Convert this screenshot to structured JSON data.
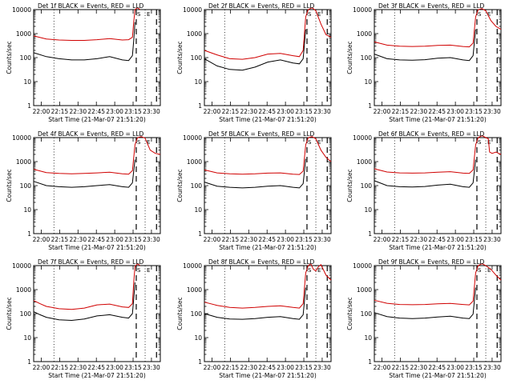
{
  "chart_data": [
    {
      "type": "line",
      "title": "Det 1f BLACK = Events, RED = LLD",
      "xlabel": "Start Time (21-Mar-07 21:51:20)",
      "ylabel": "Counts/sec",
      "ylim": [
        1,
        10000
      ],
      "yscale": "log",
      "xticks": [
        "22:00",
        "22:15",
        "22:30",
        "22:45",
        "23:00",
        "23:15",
        "23:30"
      ],
      "yticks": [
        "1",
        "10",
        "100",
        "1000",
        "10000"
      ],
      "markers": [
        "S",
        "E"
      ],
      "series": [
        {
          "color": "#d00000",
          "x": [
            0,
            10,
            20,
            30,
            40,
            50,
            60,
            70,
            75,
            78,
            79,
            80,
            82,
            84
          ],
          "y": [
            800,
            600,
            540,
            520,
            520,
            560,
            620,
            540,
            560,
            700,
            3000,
            10000,
            12000,
            10000
          ]
        },
        {
          "color": "#000000",
          "x": [
            0,
            10,
            20,
            30,
            40,
            50,
            60,
            70,
            75,
            78,
            79,
            80
          ],
          "y": [
            160,
            110,
            90,
            80,
            80,
            90,
            110,
            80,
            75,
            120,
            500,
            3000
          ]
        }
      ]
    },
    {
      "type": "line",
      "title": "Det 2f BLACK = Events, RED = LLD",
      "xlabel": "Start Time (21-Mar-07 21:51:20)",
      "ylabel": "Counts/sec",
      "ylim": [
        1,
        10000
      ],
      "yscale": "log",
      "xticks": [
        "22:00",
        "22:15",
        "22:30",
        "22:45",
        "23:00",
        "23:15",
        "23:30"
      ],
      "yticks": [
        "1",
        "10",
        "100",
        "1000",
        "10000"
      ],
      "markers": [
        "S",
        "E"
      ],
      "series": [
        {
          "color": "#d00000",
          "x": [
            0,
            10,
            20,
            30,
            40,
            50,
            60,
            70,
            75,
            78,
            80,
            82,
            85,
            88,
            92,
            96,
            100
          ],
          "y": [
            200,
            130,
            90,
            85,
            100,
            140,
            150,
            120,
            110,
            200,
            5000,
            10000,
            12000,
            9000,
            2500,
            900,
            700
          ]
        },
        {
          "color": "#000000",
          "x": [
            0,
            10,
            20,
            30,
            40,
            50,
            60,
            70,
            75,
            78,
            80
          ],
          "y": [
            90,
            45,
            32,
            30,
            40,
            65,
            80,
            60,
            55,
            90,
            1500
          ]
        }
      ]
    },
    {
      "type": "line",
      "title": "Det 3f BLACK = Events, RED = LLD",
      "xlabel": "Start Time (21-Mar-07 21:51:20)",
      "ylabel": "Counts/sec",
      "ylim": [
        1,
        10000
      ],
      "yscale": "log",
      "xticks": [
        "22:00",
        "22:15",
        "22:30",
        "22:45",
        "23:00",
        "23:15",
        "23:30"
      ],
      "yticks": [
        "1",
        "10",
        "100",
        "1000",
        "10000"
      ],
      "markers": [
        "S",
        "E"
      ],
      "series": [
        {
          "color": "#d00000",
          "x": [
            0,
            10,
            20,
            30,
            40,
            50,
            60,
            70,
            75,
            78,
            80,
            82,
            85,
            88,
            92,
            96,
            100
          ],
          "y": [
            450,
            330,
            300,
            290,
            300,
            320,
            330,
            290,
            280,
            400,
            5000,
            10000,
            11000,
            9000,
            3500,
            2000,
            1500
          ]
        },
        {
          "color": "#000000",
          "x": [
            0,
            10,
            20,
            30,
            40,
            50,
            60,
            70,
            75,
            78,
            80
          ],
          "y": [
            140,
            90,
            80,
            78,
            82,
            95,
            100,
            80,
            75,
            120,
            1500
          ]
        }
      ]
    },
    {
      "type": "line",
      "title": "Det 4f BLACK = Events, RED = LLD",
      "xlabel": "Start Time (21-Mar-07 21:51:20)",
      "ylabel": "Counts/sec",
      "ylim": [
        1,
        10000
      ],
      "yscale": "log",
      "xticks": [
        "22:00",
        "22:15",
        "22:30",
        "22:45",
        "23:00",
        "23:15",
        "23:30"
      ],
      "yticks": [
        "1",
        "10",
        "100",
        "1000",
        "10000"
      ],
      "markers": [
        "S",
        "E"
      ],
      "series": [
        {
          "color": "#d00000",
          "x": [
            0,
            10,
            20,
            30,
            40,
            50,
            60,
            70,
            75,
            78,
            80,
            82,
            85,
            88,
            92,
            96,
            100
          ],
          "y": [
            480,
            350,
            320,
            310,
            320,
            340,
            360,
            310,
            300,
            420,
            5000,
            10000,
            11000,
            9500,
            3000,
            2200,
            2000
          ]
        },
        {
          "color": "#000000",
          "x": [
            0,
            10,
            20,
            30,
            40,
            50,
            60,
            70,
            75,
            78,
            80
          ],
          "y": [
            150,
            100,
            90,
            85,
            90,
            100,
            110,
            90,
            85,
            130,
            1200
          ]
        }
      ]
    },
    {
      "type": "line",
      "title": "Det 5f BLACK = Events, RED = LLD",
      "xlabel": "Start Time (21-Mar-07 21:51:20)",
      "ylabel": "Counts/sec",
      "ylim": [
        1,
        10000
      ],
      "yscale": "log",
      "xticks": [
        "22:00",
        "22:15",
        "22:30",
        "22:45",
        "23:00",
        "23:15",
        "23:30"
      ],
      "yticks": [
        "1",
        "10",
        "100",
        "1000",
        "10000"
      ],
      "markers": [
        "S",
        "E"
      ],
      "series": [
        {
          "color": "#d00000",
          "x": [
            0,
            10,
            20,
            30,
            40,
            50,
            60,
            70,
            75,
            78,
            80,
            82,
            85,
            88,
            92,
            96,
            100
          ],
          "y": [
            450,
            340,
            310,
            300,
            310,
            330,
            340,
            300,
            290,
            400,
            5000,
            10000,
            11000,
            9000,
            3000,
            1500,
            1000
          ]
        },
        {
          "color": "#000000",
          "x": [
            0,
            10,
            20,
            30,
            40,
            50,
            60,
            70,
            75,
            78,
            80
          ],
          "y": [
            140,
            95,
            85,
            80,
            85,
            95,
            100,
            85,
            80,
            120,
            1300
          ]
        }
      ]
    },
    {
      "type": "line",
      "title": "Det 6f BLACK = Events, RED = LLD",
      "xlabel": "Start Time (21-Mar-07 21:51:20)",
      "ylabel": "Counts/sec",
      "ylim": [
        1,
        10000
      ],
      "yscale": "log",
      "xticks": [
        "22:00",
        "22:15",
        "22:30",
        "22:45",
        "23:00",
        "23:15",
        "23:30"
      ],
      "yticks": [
        "1",
        "10",
        "100",
        "1000",
        "10000"
      ],
      "markers": [
        "S",
        "E"
      ],
      "series": [
        {
          "color": "#d00000",
          "x": [
            0,
            10,
            20,
            30,
            40,
            50,
            60,
            70,
            75,
            78,
            80,
            82,
            85,
            88,
            90,
            91,
            93,
            96,
            100
          ],
          "y": [
            500,
            370,
            340,
            330,
            340,
            360,
            380,
            330,
            320,
            450,
            5000,
            10000,
            12000,
            10000,
            9000,
            2500,
            2200,
            2500,
            2000
          ]
        },
        {
          "color": "#000000",
          "x": [
            0,
            10,
            20,
            30,
            40,
            50,
            60,
            70,
            75,
            78,
            80
          ],
          "y": [
            160,
            100,
            90,
            88,
            92,
            105,
            115,
            90,
            85,
            130,
            1200
          ]
        }
      ]
    },
    {
      "type": "line",
      "title": "Det 7f BLACK = Events, RED = LLD",
      "xlabel": "Start Time (21-Mar-07 21:51:20)",
      "ylabel": "Counts/sec",
      "ylim": [
        1,
        10000
      ],
      "yscale": "log",
      "xticks": [
        "22:00",
        "22:15",
        "22:30",
        "22:45",
        "23:00",
        "23:15",
        "23:30"
      ],
      "yticks": [
        "1",
        "10",
        "100",
        "1000",
        "10000"
      ],
      "markers": [
        "S",
        "E"
      ],
      "series": [
        {
          "color": "#d00000",
          "x": [
            0,
            5,
            10,
            20,
            30,
            40,
            50,
            60,
            70,
            75,
            78,
            79,
            80,
            82,
            84
          ],
          "y": [
            350,
            260,
            200,
            160,
            150,
            170,
            230,
            250,
            190,
            180,
            260,
            2000,
            9000,
            12000,
            10000
          ]
        },
        {
          "color": "#000000",
          "x": [
            0,
            5,
            10,
            20,
            30,
            40,
            50,
            60,
            70,
            75,
            78,
            79,
            80
          ],
          "y": [
            120,
            90,
            70,
            55,
            52,
            60,
            80,
            90,
            70,
            65,
            100,
            400,
            2000
          ]
        }
      ]
    },
    {
      "type": "line",
      "title": "Det 8f BLACK = Events, RED = LLD",
      "xlabel": "Start Time (21-Mar-07 21:51:20)",
      "ylabel": "Counts/sec",
      "ylim": [
        1,
        10000
      ],
      "yscale": "log",
      "xticks": [
        "22:00",
        "22:15",
        "22:30",
        "22:45",
        "23:00",
        "23:15",
        "23:30"
      ],
      "yticks": [
        "1",
        "10",
        "100",
        "1000",
        "10000"
      ],
      "markers": [
        "S",
        "E"
      ],
      "series": [
        {
          "color": "#d00000",
          "x": [
            0,
            10,
            20,
            30,
            40,
            50,
            60,
            70,
            75,
            78,
            80,
            82,
            84,
            86,
            88,
            90,
            92,
            96,
            100
          ],
          "y": [
            300,
            220,
            180,
            170,
            180,
            200,
            210,
            180,
            170,
            260,
            5000,
            10000,
            12000,
            7000,
            6000,
            9000,
            11000,
            4000,
            2500
          ]
        },
        {
          "color": "#000000",
          "x": [
            0,
            10,
            20,
            30,
            40,
            50,
            60,
            70,
            75,
            78,
            80
          ],
          "y": [
            100,
            70,
            60,
            58,
            62,
            70,
            75,
            62,
            58,
            90,
            1200
          ]
        }
      ]
    },
    {
      "type": "line",
      "title": "Det 9f BLACK = Events, RED = LLD",
      "xlabel": "Start Time (21-Mar-07 21:51:20)",
      "ylabel": "Counts/sec",
      "ylim": [
        1,
        10000
      ],
      "yscale": "log",
      "xticks": [
        "22:00",
        "22:15",
        "22:30",
        "22:45",
        "23:00",
        "23:15",
        "23:30"
      ],
      "yticks": [
        "1",
        "10",
        "100",
        "1000",
        "10000"
      ],
      "markers": [
        "S",
        "E"
      ],
      "series": [
        {
          "color": "#d00000",
          "x": [
            0,
            10,
            20,
            30,
            40,
            50,
            60,
            70,
            75,
            78,
            80,
            82,
            85,
            88,
            92,
            96,
            100
          ],
          "y": [
            360,
            270,
            240,
            235,
            240,
            255,
            265,
            240,
            230,
            330,
            5000,
            10000,
            12000,
            10000,
            7000,
            4000,
            2500
          ]
        },
        {
          "color": "#000000",
          "x": [
            0,
            10,
            20,
            30,
            40,
            50,
            60,
            70,
            75,
            78,
            80
          ],
          "y": [
            110,
            75,
            65,
            62,
            65,
            72,
            78,
            65,
            62,
            95,
            1200
          ]
        }
      ]
    }
  ]
}
